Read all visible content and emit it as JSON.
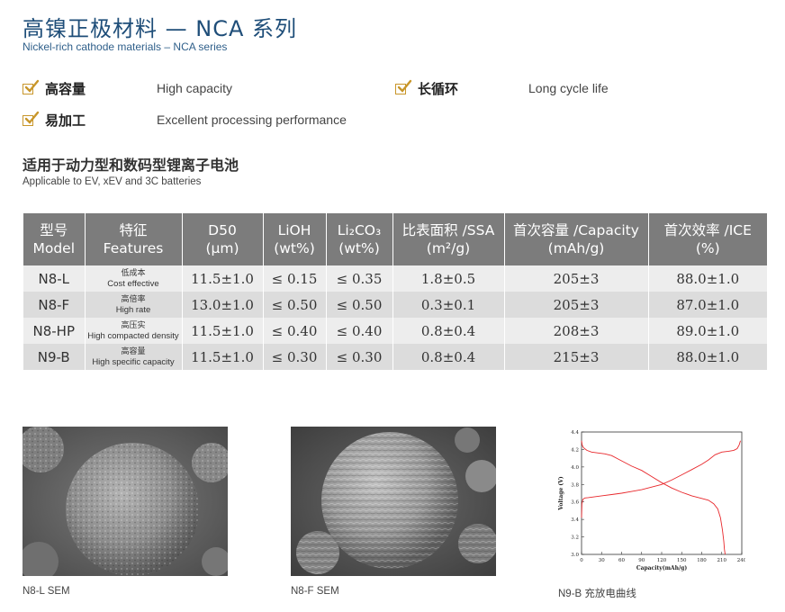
{
  "header": {
    "title_cn": "高镍正极材料 — NCA 系列",
    "title_en": "Nickel-rich cathode materials – NCA series"
  },
  "features": [
    {
      "cn": "高容量",
      "en": "High capacity"
    },
    {
      "cn": "长循环",
      "en": "Long cycle life"
    },
    {
      "cn": "易加工",
      "en": "Excellent processing performance"
    }
  ],
  "application": {
    "cn": "适用于动力型和数码型锂离子电池",
    "en": "Applicable to EV, xEV and 3C batteries"
  },
  "table": {
    "headers": [
      {
        "l1": "型号",
        "l2": "Model"
      },
      {
        "l1": "特征",
        "l2": "Features"
      },
      {
        "l1": "D50",
        "l2": "(μm)"
      },
      {
        "l1": "LiOH",
        "l2": "(wt%)"
      },
      {
        "l1": "Li₂CO₃",
        "l2": "(wt%)"
      },
      {
        "l1": "比表面积 /SSA",
        "l2": "(m²/g)"
      },
      {
        "l1": "首次容量 /Capacity",
        "l2": "(mAh/g)"
      },
      {
        "l1": "首次效率 /ICE",
        "l2": "(%)"
      }
    ],
    "rows": [
      {
        "model": "N8-L",
        "feat_cn": "低成本",
        "feat_en": "Cost effective",
        "d50": "11.5±1.0",
        "lioh": "≤ 0.15",
        "li2co3": "≤ 0.35",
        "ssa": "1.8±0.5",
        "cap": "205±3",
        "ice": "88.0±1.0"
      },
      {
        "model": "N8-F",
        "feat_cn": "高倍率",
        "feat_en": "High rate",
        "d50": "13.0±1.0",
        "lioh": "≤ 0.50",
        "li2co3": "≤ 0.50",
        "ssa": "0.3±0.1",
        "cap": "205±3",
        "ice": "87.0±1.0"
      },
      {
        "model": "N8-HP",
        "feat_cn": "高压实",
        "feat_en": "High compacted density",
        "d50": "11.5±1.0",
        "lioh": "≤ 0.40",
        "li2co3": "≤ 0.40",
        "ssa": "0.8±0.4",
        "cap": "208±3",
        "ice": "89.0±1.0"
      },
      {
        "model": "N9-B",
        "feat_cn": "高容量",
        "feat_en": "High specific capacity",
        "d50": "11.5±1.0",
        "lioh": "≤ 0.30",
        "li2co3": "≤ 0.30",
        "ssa": "0.8±0.4",
        "cap": "215±3",
        "ice": "88.0±1.0"
      }
    ]
  },
  "captions": {
    "sem1": "N8-L  SEM",
    "sem2": "N8-F  SEM",
    "chart": "N9-B 充放电曲线"
  },
  "colors": {
    "title": "#1f4e79",
    "check": "#c8962a",
    "header_bg": "#7c7c7c",
    "curve": "#e8282c"
  },
  "chart_data": {
    "type": "line",
    "xlabel": "Capacity(mAh/g)",
    "ylabel": "Voltage (V)",
    "xlim": [
      0,
      240
    ],
    "ylim": [
      3.0,
      4.4
    ],
    "x_ticks": [
      0,
      30,
      60,
      90,
      120,
      150,
      180,
      210,
      240
    ],
    "y_ticks": [
      3.0,
      3.2,
      3.4,
      3.6,
      3.8,
      4.0,
      4.2,
      4.4
    ],
    "series": [
      {
        "x": [
          0,
          0.5,
          2,
          5,
          10,
          20,
          30,
          45,
          60,
          75,
          90,
          105,
          120,
          135,
          150,
          165,
          180,
          190,
          200,
          210,
          220,
          228,
          233,
          236,
          238
        ],
        "y": [
          3.42,
          3.58,
          3.63,
          3.645,
          3.65,
          3.66,
          3.67,
          3.685,
          3.7,
          3.72,
          3.74,
          3.77,
          3.8,
          3.85,
          3.91,
          3.97,
          4.03,
          4.08,
          4.14,
          4.17,
          4.18,
          4.19,
          4.21,
          4.25,
          4.3
        ]
      },
      {
        "x": [
          0,
          1,
          3,
          8,
          15,
          25,
          35,
          45,
          55,
          65,
          75,
          90,
          105,
          120,
          135,
          150,
          165,
          180,
          190,
          198,
          204,
          208,
          211,
          213,
          214,
          215
        ],
        "y": [
          4.3,
          4.25,
          4.22,
          4.19,
          4.17,
          4.16,
          4.15,
          4.13,
          4.09,
          4.05,
          4.01,
          3.96,
          3.89,
          3.82,
          3.76,
          3.71,
          3.67,
          3.64,
          3.62,
          3.58,
          3.52,
          3.42,
          3.28,
          3.15,
          3.06,
          3.0
        ]
      }
    ]
  }
}
